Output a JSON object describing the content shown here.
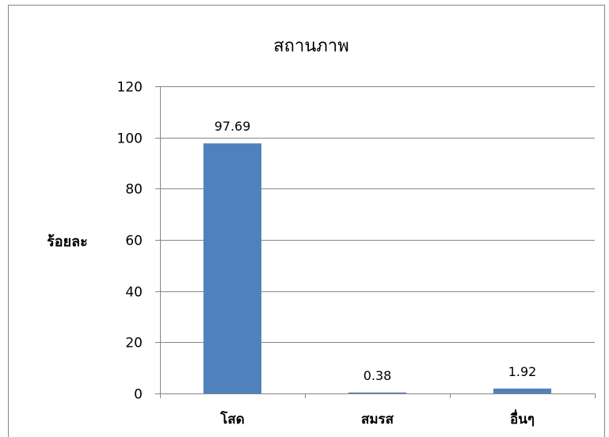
{
  "chart_data": {
    "type": "bar",
    "title": "สถานภาพ",
    "xlabel": "",
    "ylabel": "ร้อยละ",
    "categories": [
      "โสด",
      "สมรส",
      "อื่นๆ"
    ],
    "values": [
      97.69,
      0.38,
      1.92
    ],
    "data_labels": [
      "97.69",
      "0.38",
      "1.92"
    ],
    "ylim": [
      0,
      120
    ],
    "yticks": [
      0,
      20,
      40,
      60,
      80,
      100,
      120
    ],
    "grid": true,
    "legend": "none",
    "bar_color": "#4F81BD",
    "grid_color": "#868686"
  }
}
